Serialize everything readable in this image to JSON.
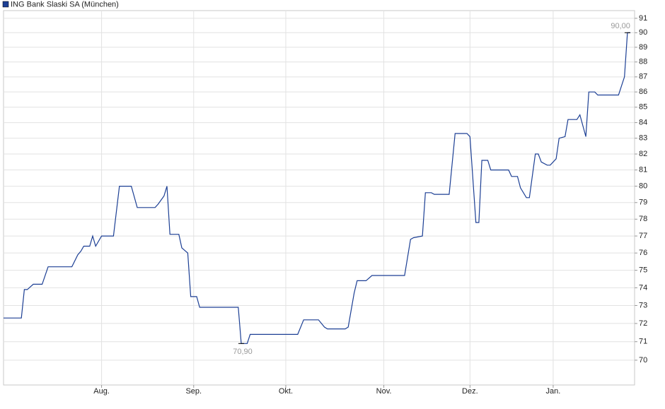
{
  "chart_data": {
    "type": "line",
    "series": [
      {
        "name": "ING Bank Slaski SA (München)",
        "color": "#1c3f94",
        "x": [
          0,
          6,
          7,
          8,
          10,
          13,
          15,
          23,
          25,
          26,
          27,
          29,
          30,
          31,
          33,
          37,
          39,
          43,
          45,
          51,
          52,
          54,
          55,
          56,
          59,
          60,
          62,
          63,
          65,
          66,
          79,
          80,
          82,
          83,
          99,
          101,
          106,
          108,
          109,
          115,
          116,
          118,
          119,
          122,
          124,
          135,
          137,
          138,
          141,
          142,
          144,
          145,
          150,
          152,
          156,
          157,
          159,
          160,
          161,
          163,
          164,
          170,
          171,
          173,
          174,
          176,
          177,
          179,
          180,
          181,
          183,
          184,
          186,
          187,
          189,
          190,
          193,
          194,
          196,
          197,
          199,
          200,
          207,
          209,
          210,
          211
        ],
        "values": [
          72.3,
          72.3,
          73.9,
          73.9,
          74.2,
          74.2,
          75.2,
          75.2,
          75.9,
          76.1,
          76.4,
          76.4,
          77.0,
          76.4,
          77.0,
          77.0,
          80.0,
          80.0,
          78.7,
          78.7,
          78.9,
          79.4,
          80.0,
          77.1,
          77.1,
          76.3,
          76.0,
          73.5,
          73.5,
          72.9,
          72.9,
          70.9,
          70.9,
          71.4,
          71.4,
          72.2,
          72.2,
          71.8,
          71.7,
          71.7,
          71.8,
          73.7,
          74.4,
          74.4,
          74.7,
          74.7,
          76.8,
          76.9,
          77.0,
          79.6,
          79.6,
          79.5,
          79.5,
          83.3,
          83.3,
          83.1,
          77.8,
          77.8,
          81.6,
          81.6,
          81.0,
          81.0,
          80.6,
          80.6,
          79.9,
          79.3,
          79.3,
          82.0,
          82.0,
          81.5,
          81.3,
          81.3,
          81.7,
          83.0,
          83.1,
          84.2,
          84.2,
          84.5,
          83.1,
          86.0,
          86.0,
          85.8,
          85.8,
          87.0,
          90.0,
          90.0
        ]
      }
    ],
    "annotations": [
      {
        "text": "70,90",
        "x": 80,
        "y": 70.9
      },
      {
        "text": "90,00",
        "x": 210,
        "y": 90.0
      }
    ],
    "xlim": [
      0,
      212.4
    ],
    "xticks": [
      {
        "value": 33,
        "label": "Aug."
      },
      {
        "value": 64,
        "label": "Sep."
      },
      {
        "value": 95,
        "label": "Okt."
      },
      {
        "value": 128,
        "label": "Nov."
      },
      {
        "value": 157,
        "label": "Dez."
      },
      {
        "value": 185,
        "label": "Jan."
      }
    ],
    "ylim": [
      68.68,
      91.54
    ],
    "yticks": [
      70,
      71,
      72,
      73,
      74,
      75,
      76,
      77,
      78,
      79,
      80,
      81,
      82,
      83,
      84,
      85,
      86,
      87,
      88,
      89,
      90,
      91
    ],
    "log": true,
    "grid": true,
    "legend": "top-left"
  }
}
